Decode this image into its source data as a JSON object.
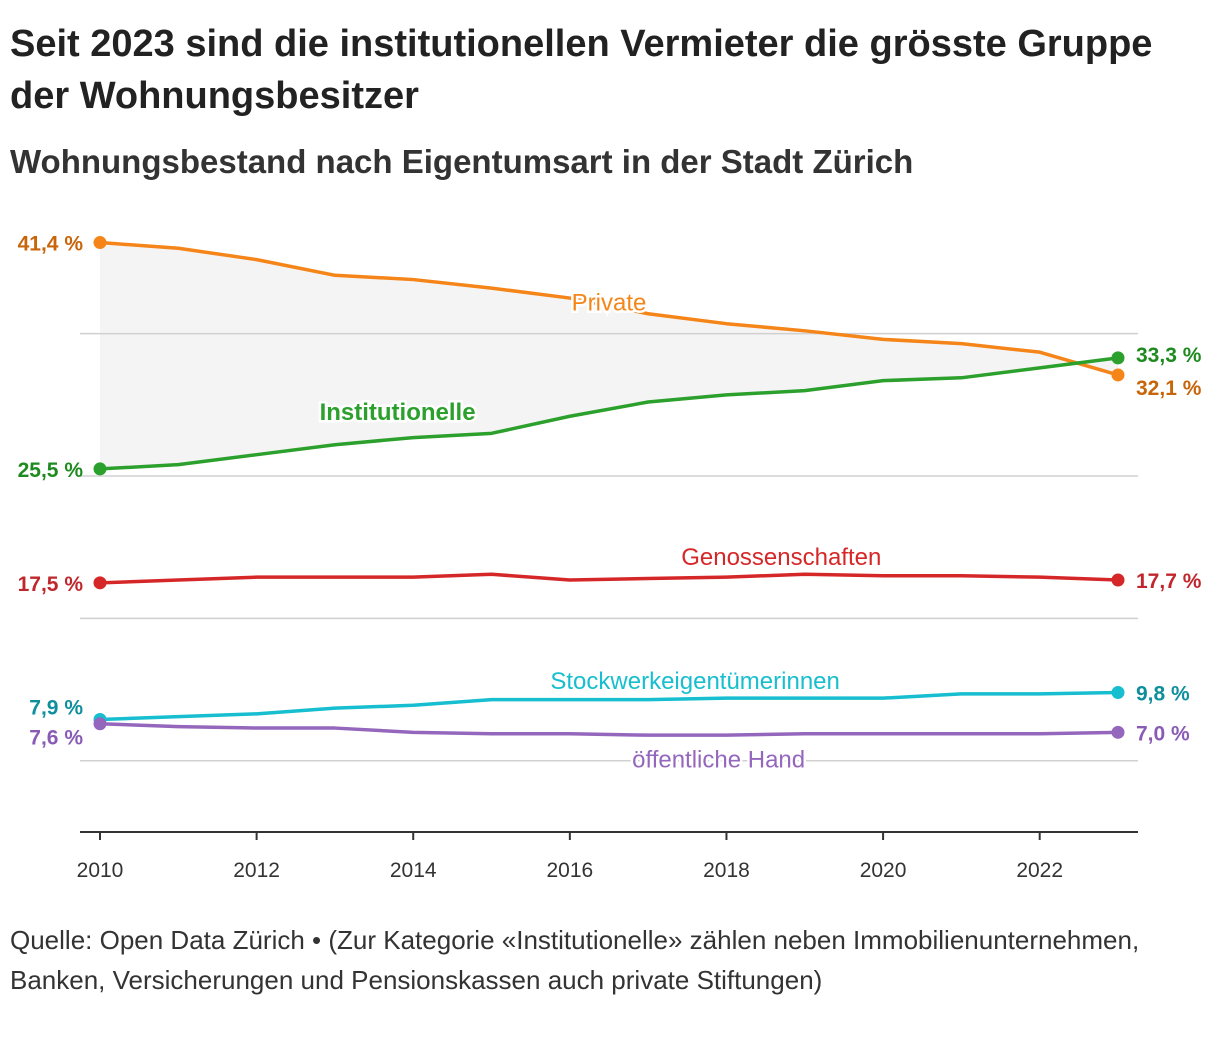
{
  "header": {
    "title": "Seit 2023 sind die institutionellen Vermieter die grösste Gruppe der Wohnungsbesitzer",
    "subtitle": "Wohnungsbestand nach Eigentumsart in der Stadt Zürich"
  },
  "footer": {
    "note": "Quelle: Open Data Zürich • (Zur Kategorie «Institutionelle» zählen neben Immobilienunternehmen, Banken, Versicherungen und Pensionskassen auch private Stiftungen)"
  },
  "chart_data": {
    "type": "line",
    "title": "Seit 2023 sind die institutionellen Vermieter die grösste Gruppe der Wohnungsbesitzer",
    "subtitle": "Wohnungsbestand nach Eigentumsart in der Stadt Zürich",
    "xlabel": "",
    "ylabel": "",
    "xlim": [
      2010,
      2023
    ],
    "ylim": [
      0,
      42
    ],
    "grid": true,
    "x": [
      2010,
      2011,
      2012,
      2013,
      2014,
      2015,
      2016,
      2017,
      2018,
      2019,
      2020,
      2021,
      2022,
      2023
    ],
    "x_ticks": [
      2010,
      2012,
      2014,
      2016,
      2018,
      2020,
      2022
    ],
    "x_tick_labels": [
      "2010",
      "2012",
      "2014",
      "2016",
      "2018",
      "2020",
      "2022"
    ],
    "y_gridlines": [
      5,
      15,
      25,
      35
    ],
    "shaded_area_between": [
      "Private",
      "Institutionelle"
    ],
    "series": [
      {
        "name": "Private",
        "color": "#f58518",
        "label_color": "#c8650a",
        "values": [
          41.4,
          41.0,
          40.2,
          39.1,
          38.8,
          38.2,
          37.5,
          36.4,
          35.7,
          35.2,
          34.6,
          34.3,
          33.7,
          32.1
        ],
        "start_label": "41,4 %",
        "end_label": "32,1 %"
      },
      {
        "name": "Institutionelle",
        "color": "#2ca02c",
        "label_color": "#1f8a1f",
        "values": [
          25.5,
          25.8,
          26.5,
          27.2,
          27.7,
          28.0,
          29.2,
          30.2,
          30.7,
          31.0,
          31.7,
          31.9,
          32.6,
          33.3
        ],
        "start_label": "25,5 %",
        "end_label": "33,3 %"
      },
      {
        "name": "Genossenschaften",
        "color": "#d62728",
        "label_color": "#c0272d",
        "values": [
          17.5,
          17.7,
          17.9,
          17.9,
          17.9,
          18.1,
          17.7,
          17.8,
          17.9,
          18.1,
          18.0,
          18.0,
          17.9,
          17.7
        ],
        "start_label": "17,5 %",
        "end_label": "17,7 %"
      },
      {
        "name": "Stockwerkeigentümerinnen",
        "color": "#17becf",
        "label_color": "#0f8f9c",
        "values": [
          7.9,
          8.1,
          8.3,
          8.7,
          8.9,
          9.3,
          9.3,
          9.3,
          9.4,
          9.4,
          9.4,
          9.7,
          9.7,
          9.8
        ],
        "start_label": "7,9 %",
        "end_label": "9,8 %"
      },
      {
        "name": "öffentliche Hand",
        "color": "#9467bd",
        "label_color": "#8a5bb5",
        "values": [
          7.6,
          7.4,
          7.3,
          7.3,
          7.0,
          6.9,
          6.9,
          6.8,
          6.8,
          6.9,
          6.9,
          6.9,
          6.9,
          7.0
        ],
        "start_label": "7,6 %",
        "end_label": "7,0 %"
      }
    ]
  }
}
